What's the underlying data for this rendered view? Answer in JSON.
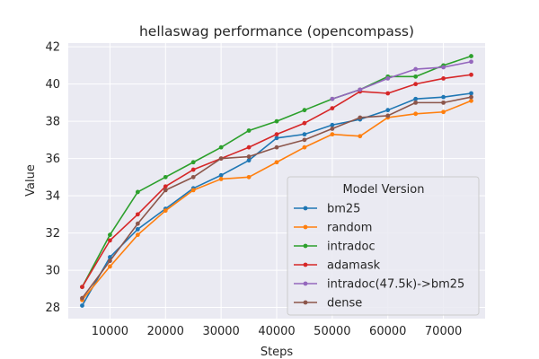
{
  "chart_data": {
    "type": "line",
    "title": "hellaswag performance (opencompass)",
    "xlabel": "Steps",
    "ylabel": "Value",
    "xlim": [
      2500,
      77500
    ],
    "ylim": [
      27.4,
      42.2
    ],
    "x_ticks": [
      10000,
      20000,
      30000,
      40000,
      50000,
      60000,
      70000
    ],
    "y_ticks": [
      28,
      30,
      32,
      34,
      36,
      38,
      40,
      42
    ],
    "grid": true,
    "legend_title": "Model Version",
    "legend_position": "lower right",
    "series": [
      {
        "name": "bm25",
        "color": "#1f77b4",
        "x": [
          5000,
          10000,
          15000,
          20000,
          25000,
          30000,
          35000,
          40000,
          45000,
          50000,
          55000,
          60000,
          65000,
          70000,
          75000
        ],
        "values": [
          28.1,
          30.7,
          32.2,
          33.3,
          34.4,
          35.1,
          35.9,
          37.1,
          37.3,
          37.8,
          38.1,
          38.6,
          39.2,
          39.3,
          39.5
        ]
      },
      {
        "name": "random",
        "color": "#ff7f0e",
        "x": [
          5000,
          10000,
          15000,
          20000,
          25000,
          30000,
          35000,
          40000,
          45000,
          50000,
          55000,
          60000,
          65000,
          70000,
          75000
        ],
        "values": [
          28.4,
          30.2,
          31.9,
          33.2,
          34.3,
          34.9,
          35.0,
          35.8,
          36.6,
          37.3,
          37.2,
          38.2,
          38.4,
          38.5,
          39.1
        ]
      },
      {
        "name": "intradoc",
        "color": "#2ca02c",
        "x": [
          5000,
          10000,
          15000,
          20000,
          25000,
          30000,
          35000,
          40000,
          45000,
          50000,
          55000,
          60000,
          65000,
          70000,
          75000
        ],
        "values": [
          29.1,
          31.9,
          34.2,
          35.0,
          35.8,
          36.6,
          37.5,
          38.0,
          38.6,
          39.2,
          39.7,
          40.4,
          40.4,
          41.0,
          41.5
        ]
      },
      {
        "name": "adamask",
        "color": "#d62728",
        "x": [
          5000,
          10000,
          15000,
          20000,
          25000,
          30000,
          35000,
          40000,
          45000,
          50000,
          55000,
          60000,
          65000,
          70000,
          75000
        ],
        "values": [
          29.1,
          31.6,
          33.0,
          34.5,
          35.4,
          36.0,
          36.6,
          37.3,
          37.9,
          38.7,
          39.6,
          39.5,
          40.0,
          40.3,
          40.5
        ]
      },
      {
        "name": "intradoc(47.5k)->bm25",
        "color": "#9467bd",
        "x": [
          50000,
          55000,
          60000,
          65000,
          70000,
          75000
        ],
        "values": [
          39.2,
          39.7,
          40.3,
          40.8,
          40.9,
          41.2
        ]
      },
      {
        "name": "dense",
        "color": "#8c564b",
        "x": [
          5000,
          10000,
          15000,
          20000,
          25000,
          30000,
          35000,
          40000,
          45000,
          50000,
          55000,
          60000,
          65000,
          70000,
          75000
        ],
        "values": [
          28.5,
          30.5,
          32.5,
          34.3,
          35.0,
          36.0,
          36.1,
          36.6,
          37.0,
          37.6,
          38.2,
          38.3,
          39.0,
          39.0,
          39.3
        ]
      }
    ]
  }
}
